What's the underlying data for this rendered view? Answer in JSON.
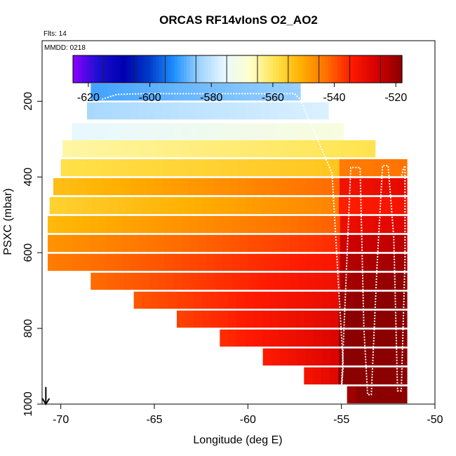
{
  "chart_data": {
    "type": "heatmap",
    "title": "ORCAS RF14vIonS O2_AO2",
    "annotations": {
      "flights": "Flts: 14",
      "date": "MMDD: 0218"
    },
    "xlabel": "Longitude (deg E)",
    "ylabel": "PSXC (mbar)",
    "xlim": [
      -71,
      -50
    ],
    "ylim": [
      1000,
      40
    ],
    "xticks": [
      -70,
      -65,
      -60,
      -55,
      -50
    ],
    "yticks": [
      200,
      400,
      600,
      800,
      1000
    ],
    "colorbar": {
      "min": -625,
      "max": -518,
      "ticks": [
        -620,
        -600,
        -580,
        -560,
        -540,
        -520
      ],
      "stops": [
        "#8b00ff",
        "#1b0fd0",
        "#0000b0",
        "#003ac8",
        "#1e90ff",
        "#9fd3ff",
        "#e8f8ff",
        "#ffffcc",
        "#ffe34d",
        "#ffb000",
        "#ff7000",
        "#ff1a00",
        "#d40000",
        "#8b0000"
      ]
    },
    "bands": [
      {
        "p": 175,
        "x0": -68.4,
        "x1": -57.2,
        "v": -588
      },
      {
        "p": 225,
        "x0": -68.6,
        "x1": -55.7,
        "v": -581
      },
      {
        "p": 280,
        "x0": -69.4,
        "x1": -54.9,
        "v": -574
      },
      {
        "p": 325,
        "x0": -69.9,
        "x1": -53.2,
        "v": -563
      },
      {
        "p": 375,
        "x0": -70.0,
        "x1": -51.5,
        "v": -557
      },
      {
        "p": 425,
        "x0": -70.4,
        "x1": -51.5,
        "v": -549
      },
      {
        "p": 475,
        "x0": -70.6,
        "x1": -51.5,
        "v": -552
      },
      {
        "p": 525,
        "x0": -70.7,
        "x1": -51.5,
        "v": -548
      },
      {
        "p": 575,
        "x0": -70.7,
        "x1": -51.5,
        "v": -543
      },
      {
        "p": 625,
        "x0": -70.7,
        "x1": -51.5,
        "v": -540
      },
      {
        "p": 675,
        "x0": -68.4,
        "x1": -51.5,
        "v": -538
      },
      {
        "p": 725,
        "x0": -66.1,
        "x1": -51.5,
        "v": -536
      },
      {
        "p": 775,
        "x0": -63.8,
        "x1": -51.5,
        "v": -534
      },
      {
        "p": 825,
        "x0": -61.5,
        "x1": -51.5,
        "v": -532
      },
      {
        "p": 875,
        "x0": -59.2,
        "x1": -51.5,
        "v": -530
      },
      {
        "p": 925,
        "x0": -57.0,
        "x1": -51.5,
        "v": -528
      },
      {
        "p": 975,
        "x0": -54.7,
        "x1": -51.5,
        "v": -526
      }
    ],
    "flight_track": {
      "lon": [
        -67.8,
        -67.0,
        -65.5,
        -63.0,
        -60.5,
        -58.5,
        -57.5,
        -57.2,
        -55.5,
        -54.9,
        -55.0,
        -54.5,
        -54.0,
        -53.8,
        -53.6,
        -53.4,
        -53.1,
        -52.8,
        -52.5,
        -52.2,
        -52.0,
        -51.8,
        -51.6,
        -51.6,
        -51.7,
        -51.8
      ],
      "psxc": [
        195,
        182,
        180,
        180,
        180,
        180,
        180,
        195,
        390,
        900,
        960,
        375,
        375,
        800,
        975,
        975,
        640,
        370,
        370,
        560,
        965,
        965,
        620,
        370,
        380,
        400
      ]
    },
    "arrow": {
      "lon": -70.8,
      "psxc_from": 955,
      "psxc_to": 1000
    }
  }
}
